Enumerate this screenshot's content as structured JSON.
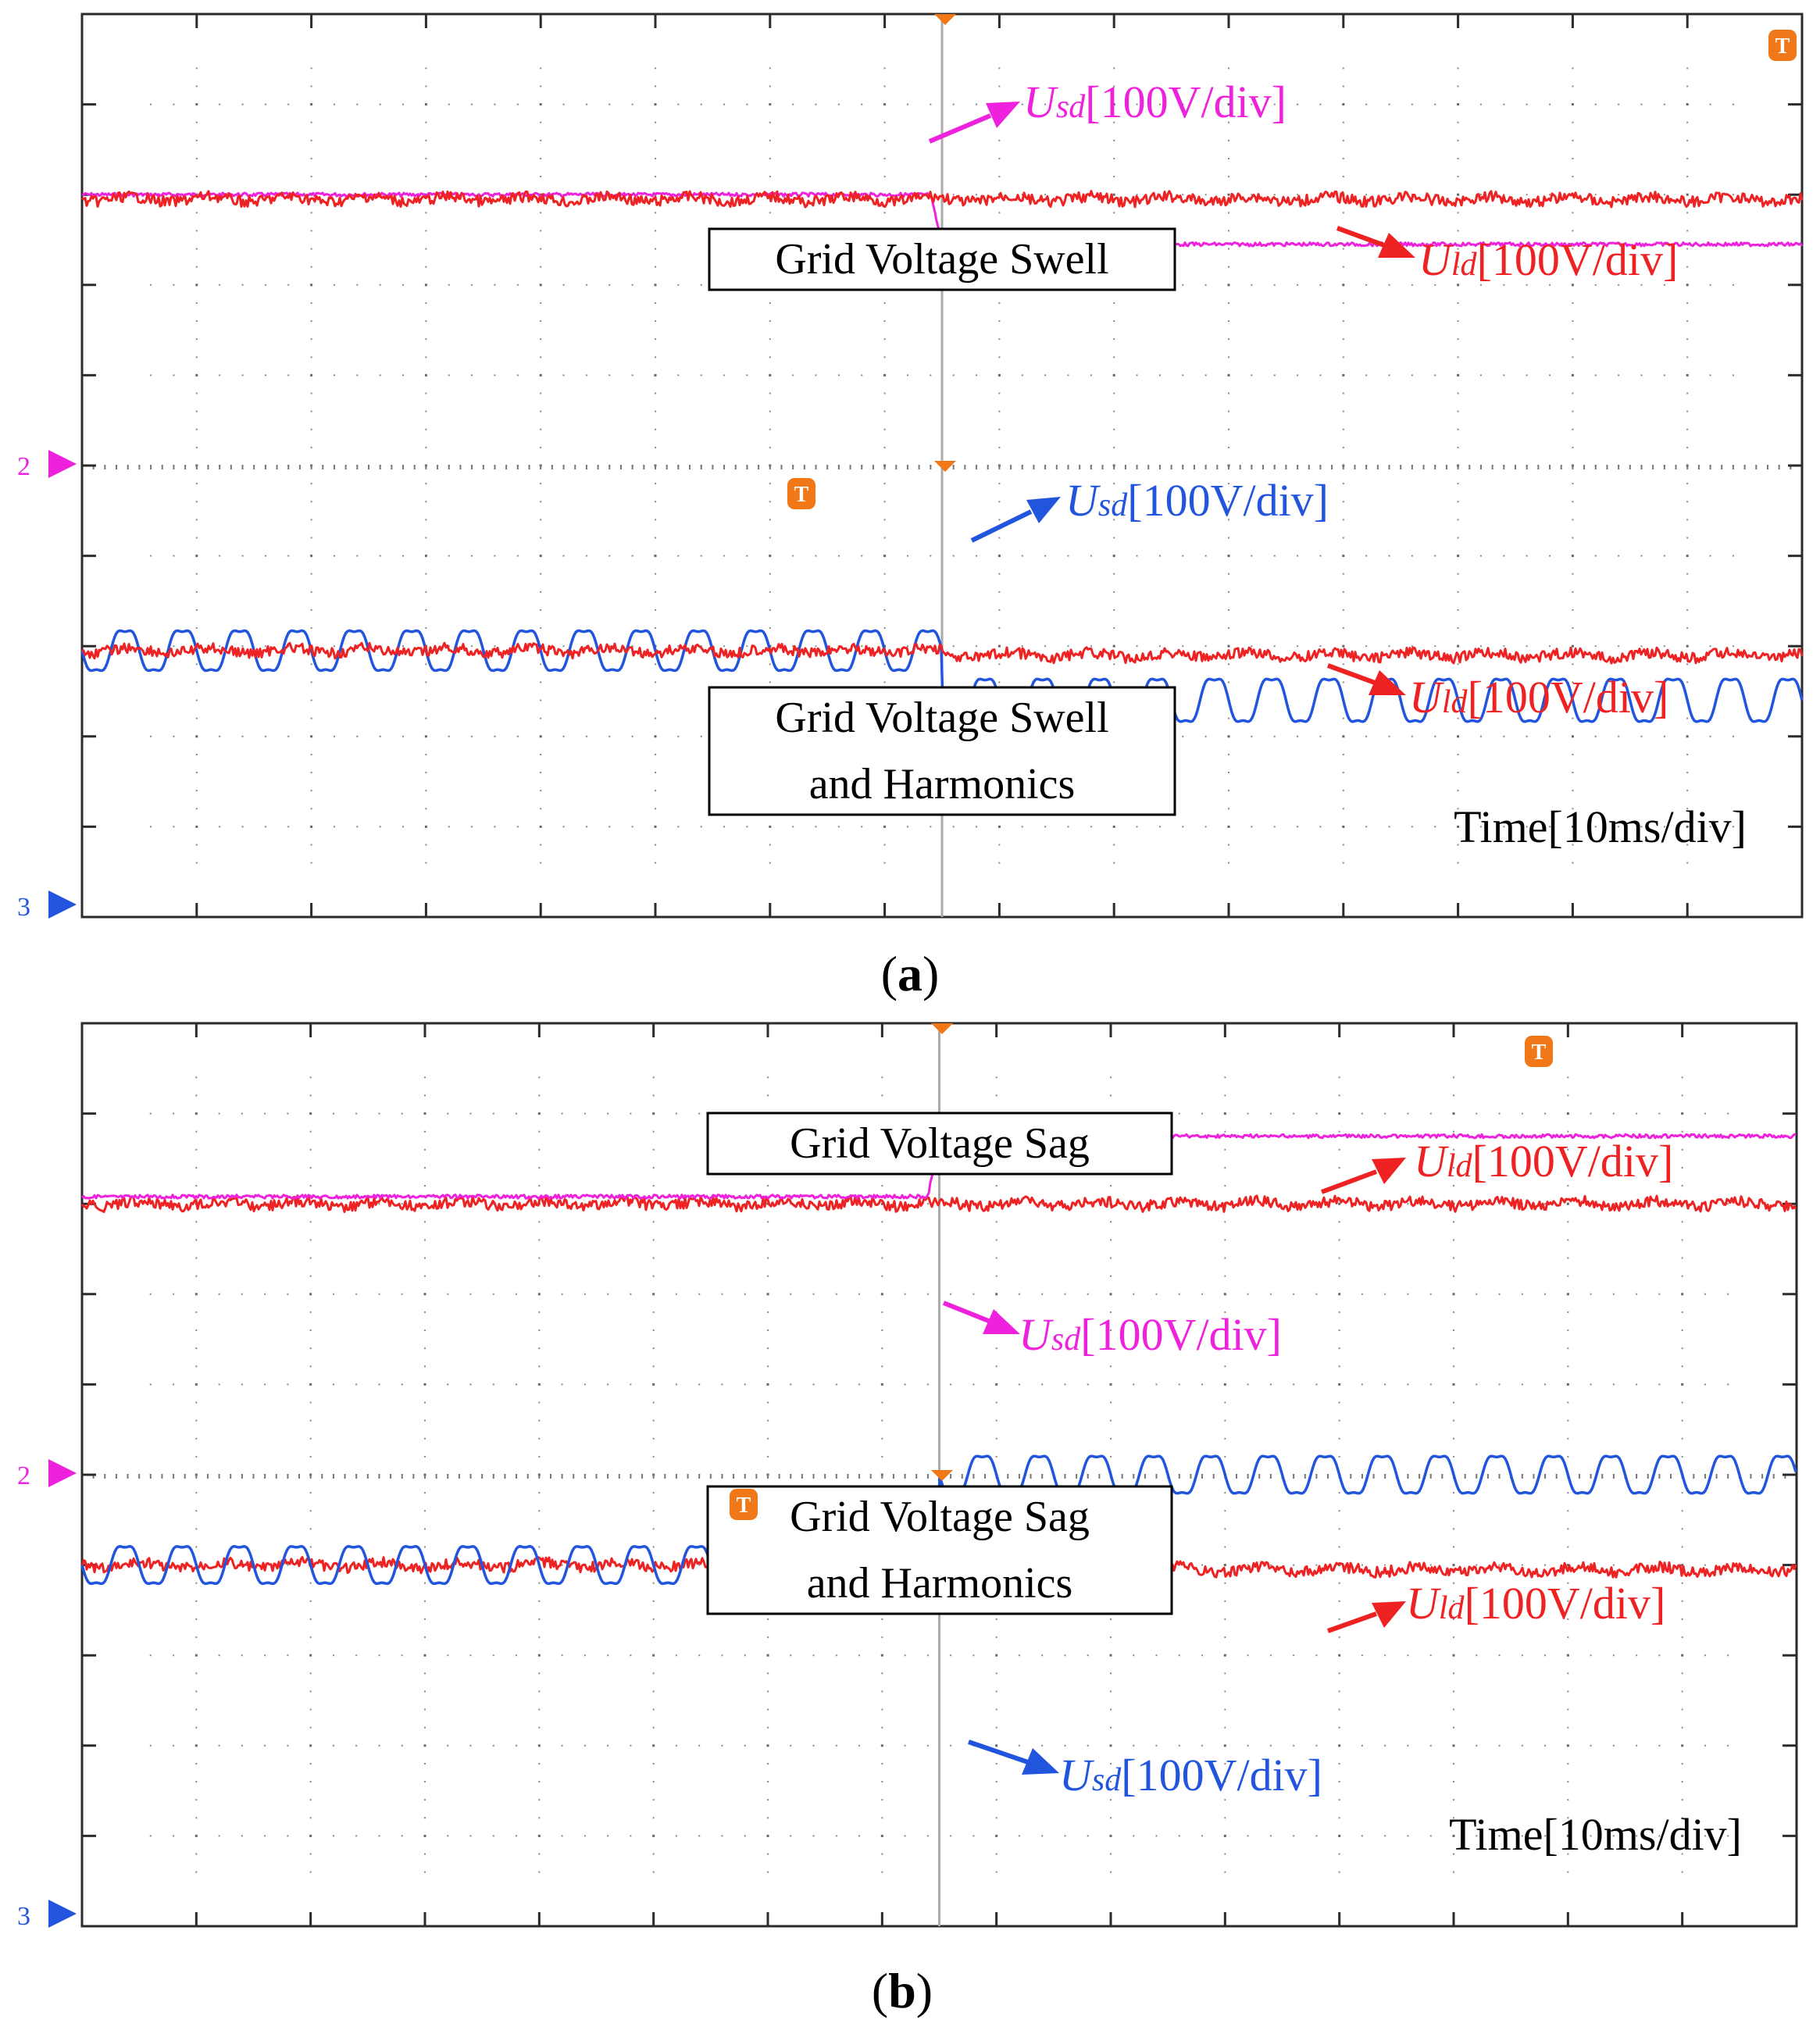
{
  "figure": {
    "panel_a_caption": "a",
    "panel_b_caption": "b"
  },
  "colors": {
    "usd_a": "#ee22dd",
    "uld": "#ee2222",
    "usd_b": "#2255dd",
    "grid": "#2b2b2b",
    "marker_orange": "#f07818"
  },
  "chart_data": [
    {
      "type": "line",
      "panel": "a",
      "xlabel": "Time[10ms/div]",
      "x_divisions": 15,
      "y_divisions": 10,
      "disturbance_time_div": 7.5,
      "channel_markers": {
        "upper": "2",
        "lower": "3"
      },
      "trigger_marker": "T",
      "sections": [
        {
          "box": [
            "Grid Voltage Swell"
          ],
          "series": [
            {
              "name": "Usd",
              "label_main": "U",
              "label_sub": "sd",
              "label_scale": "[100V/div]",
              "color_key": "usd_a",
              "kind": "step",
              "baseline_div": 2.0,
              "level_before_div": 2.0,
              "level_after_div": 2.55,
              "ripple_div": 0.02
            },
            {
              "name": "Uld",
              "label_main": "U",
              "label_sub": "ld",
              "label_scale": "[100V/div]",
              "color_key": "uld",
              "kind": "flat",
              "baseline_div": 2.0,
              "level_before_div": 2.05,
              "level_after_div": 2.05,
              "ripple_div": 0.06
            }
          ]
        },
        {
          "box": [
            "Grid Voltage Swell",
            "and Harmonics"
          ],
          "series": [
            {
              "name": "Usd",
              "label_main": "U",
              "label_sub": "sd",
              "label_scale": "[100V/div]",
              "color_key": "usd_b",
              "kind": "harmonic_step",
              "baseline_div": 7.0,
              "level_before_div": 7.05,
              "level_after_div": 7.6,
              "amplitude_before_div": 0.3,
              "amplitude_after_div": 0.32,
              "cycles_per_div": 2.0
            },
            {
              "name": "Uld",
              "label_main": "U",
              "label_sub": "ld",
              "label_scale": "[100V/div]",
              "color_key": "uld",
              "kind": "flat",
              "baseline_div": 7.0,
              "level_before_div": 7.05,
              "level_after_div": 7.1,
              "ripple_div": 0.06
            }
          ]
        }
      ]
    },
    {
      "type": "line",
      "panel": "b",
      "xlabel": "Time[10ms/div]",
      "x_divisions": 15,
      "y_divisions": 10,
      "disturbance_time_div": 7.5,
      "channel_markers": {
        "upper": "2",
        "lower": "3"
      },
      "trigger_marker": "T",
      "sections": [
        {
          "box": [
            "Grid Voltage Sag"
          ],
          "series": [
            {
              "name": "Uld",
              "label_main": "U",
              "label_sub": "ld",
              "label_scale": "[100V/div]",
              "color_key": "uld",
              "kind": "flat",
              "baseline_div": 2.0,
              "level_before_div": 2.0,
              "level_after_div": 2.0,
              "ripple_div": 0.06
            },
            {
              "name": "Usd",
              "label_main": "U",
              "label_sub": "sd",
              "label_scale": "[100V/div]",
              "color_key": "usd_a",
              "kind": "step",
              "baseline_div": 2.0,
              "level_before_div": 1.92,
              "level_after_div": 1.25,
              "ripple_div": 0.02
            }
          ]
        },
        {
          "box": [
            "Grid Voltage Sag",
            "and Harmonics"
          ],
          "series": [
            {
              "name": "Uld",
              "label_main": "U",
              "label_sub": "ld",
              "label_scale": "[100V/div]",
              "color_key": "uld",
              "kind": "flat",
              "baseline_div": 6.0,
              "level_before_div": 6.0,
              "level_after_div": 6.05,
              "ripple_div": 0.06
            },
            {
              "name": "Usd",
              "label_main": "U",
              "label_sub": "sd",
              "label_scale": "[100V/div]",
              "color_key": "usd_b",
              "kind": "harmonic_step",
              "baseline_div": 6.0,
              "level_before_div": 6.0,
              "level_after_div": 5.0,
              "amplitude_before_div": 0.28,
              "amplitude_after_div": 0.28,
              "cycles_per_div": 2.0
            }
          ]
        }
      ]
    }
  ]
}
